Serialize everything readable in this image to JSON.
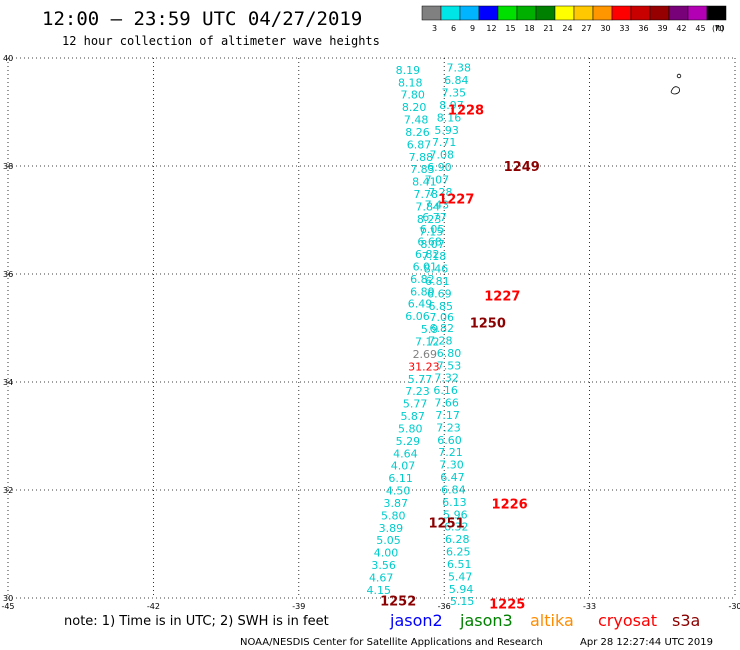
{
  "header": {
    "title": "12:00 – 23:59 UTC 04/27/2019",
    "subtitle": "12 hour collection of altimeter wave heights"
  },
  "color_scale": {
    "unit": "(ft)",
    "labels": [
      "3",
      "6",
      "9",
      "12",
      "15",
      "18",
      "21",
      "24",
      "27",
      "30",
      "33",
      "36",
      "39",
      "42",
      "45",
      "70"
    ],
    "colors": [
      "#808080",
      "#00e5e5",
      "#00b4ff",
      "#0000ff",
      "#00e000",
      "#00b000",
      "#008000",
      "#ffff00",
      "#ffc800",
      "#ff9600",
      "#ff0000",
      "#c80000",
      "#960000",
      "#780078",
      "#b400b4",
      "#000000"
    ]
  },
  "axes": {
    "lat_labels": [
      "40",
      "38",
      "36",
      "34",
      "32",
      "30"
    ],
    "lon_labels": [
      "-45",
      "-42",
      "-39",
      "-36",
      "-33",
      "-30"
    ],
    "lat_range": [
      30,
      40
    ],
    "lon_range": [
      -45,
      -30
    ]
  },
  "chart_data": {
    "type": "scatter",
    "xlim": [
      -45,
      -30
    ],
    "ylim": [
      30,
      40
    ],
    "xlabel": "",
    "ylabel": "",
    "swh_points": [
      {
        "lon": -36.75,
        "lat": 39.78,
        "v": "8.19",
        "c": "#00cccc"
      },
      {
        "lon": -36.7,
        "lat": 39.55,
        "v": "8.18",
        "c": "#00cccc"
      },
      {
        "lon": -36.65,
        "lat": 39.32,
        "v": "7.80",
        "c": "#00cccc"
      },
      {
        "lon": -36.62,
        "lat": 39.09,
        "v": "8.20",
        "c": "#00cccc"
      },
      {
        "lon": -36.58,
        "lat": 38.86,
        "v": "7.48",
        "c": "#00cccc"
      },
      {
        "lon": -36.55,
        "lat": 38.63,
        "v": "8.26",
        "c": "#00cccc"
      },
      {
        "lon": -36.52,
        "lat": 38.4,
        "v": "6.87",
        "c": "#00cccc"
      },
      {
        "lon": -36.48,
        "lat": 38.17,
        "v": "7.88",
        "c": "#00cccc"
      },
      {
        "lon": -36.45,
        "lat": 37.94,
        "v": "7.83",
        "c": "#00cccc"
      },
      {
        "lon": -36.41,
        "lat": 37.71,
        "v": "8.41",
        "c": "#00cccc"
      },
      {
        "lon": -36.38,
        "lat": 37.48,
        "v": "7.78",
        "c": "#00cccc"
      },
      {
        "lon": -36.34,
        "lat": 37.25,
        "v": "7.84",
        "c": "#00cccc"
      },
      {
        "lon": -36.31,
        "lat": 37.02,
        "v": "8.23",
        "c": "#00cccc"
      },
      {
        "lon": -36.27,
        "lat": 36.79,
        "v": "7.15",
        "c": "#00cccc"
      },
      {
        "lon": -36.24,
        "lat": 36.56,
        "v": "8.07",
        "c": "#00cccc"
      },
      {
        "lon": -36.21,
        "lat": 36.33,
        "v": "7.18",
        "c": "#00cccc"
      },
      {
        "lon": -36.17,
        "lat": 36.1,
        "v": "8.46",
        "c": "#00cccc"
      },
      {
        "lon": -36.14,
        "lat": 35.87,
        "v": "6.81",
        "c": "#00cccc"
      },
      {
        "lon": -36.1,
        "lat": 35.64,
        "v": "6.69",
        "c": "#00cccc"
      },
      {
        "lon": -36.07,
        "lat": 35.41,
        "v": "6.85",
        "c": "#00cccc"
      },
      {
        "lon": -36.05,
        "lat": 35.2,
        "v": "7.06",
        "c": "#00cccc"
      },
      {
        "lon": -36.3,
        "lat": 34.98,
        "v": "5.9",
        "c": "#00cccc"
      },
      {
        "lon": -36.35,
        "lat": 34.75,
        "v": "7.12",
        "c": "#00cccc"
      },
      {
        "lon": -36.4,
        "lat": 34.52,
        "v": "2.69",
        "c": "#808080"
      },
      {
        "lon": -36.42,
        "lat": 34.29,
        "v": "31.23",
        "c": "#ff0000"
      },
      {
        "lon": -36.5,
        "lat": 34.06,
        "v": "5.77",
        "c": "#00cccc"
      },
      {
        "lon": -36.55,
        "lat": 33.83,
        "v": "7.23",
        "c": "#00cccc"
      },
      {
        "lon": -36.6,
        "lat": 33.6,
        "v": "5.77",
        "c": "#00cccc"
      },
      {
        "lon": -36.65,
        "lat": 33.37,
        "v": "5.87",
        "c": "#00cccc"
      },
      {
        "lon": -36.7,
        "lat": 33.14,
        "v": "5.80",
        "c": "#00cccc"
      },
      {
        "lon": -36.75,
        "lat": 32.91,
        "v": "5.29",
        "c": "#00cccc"
      },
      {
        "lon": -36.8,
        "lat": 32.68,
        "v": "4.64",
        "c": "#00cccc"
      },
      {
        "lon": -36.85,
        "lat": 32.45,
        "v": "4.07",
        "c": "#00cccc"
      },
      {
        "lon": -36.9,
        "lat": 32.22,
        "v": "6.11",
        "c": "#00cccc"
      },
      {
        "lon": -36.95,
        "lat": 31.99,
        "v": "4.50",
        "c": "#00cccc"
      },
      {
        "lon": -37.0,
        "lat": 31.76,
        "v": "3.87",
        "c": "#00cccc"
      },
      {
        "lon": -37.05,
        "lat": 31.53,
        "v": "5.80",
        "c": "#00cccc"
      },
      {
        "lon": -37.1,
        "lat": 31.3,
        "v": "3.89",
        "c": "#00cccc"
      },
      {
        "lon": -37.15,
        "lat": 31.07,
        "v": "5.05",
        "c": "#00cccc"
      },
      {
        "lon": -37.2,
        "lat": 30.84,
        "v": "4.00",
        "c": "#00cccc"
      },
      {
        "lon": -37.25,
        "lat": 30.61,
        "v": "3.56",
        "c": "#00cccc"
      },
      {
        "lon": -37.3,
        "lat": 30.38,
        "v": "4.67",
        "c": "#00cccc"
      },
      {
        "lon": -37.35,
        "lat": 30.15,
        "v": "4.15",
        "c": "#00cccc"
      },
      {
        "lon": -35.7,
        "lat": 39.82,
        "v": "7.38",
        "c": "#00cccc"
      },
      {
        "lon": -35.75,
        "lat": 39.59,
        "v": "6.84",
        "c": "#00cccc"
      },
      {
        "lon": -35.8,
        "lat": 39.36,
        "v": "7.35",
        "c": "#00cccc"
      },
      {
        "lon": -35.85,
        "lat": 39.13,
        "v": "8.97",
        "c": "#00cccc"
      },
      {
        "lon": -35.9,
        "lat": 38.9,
        "v": "8.16",
        "c": "#00cccc"
      },
      {
        "lon": -35.95,
        "lat": 38.67,
        "v": "5.93",
        "c": "#00cccc"
      },
      {
        "lon": -36.0,
        "lat": 38.44,
        "v": "7.71",
        "c": "#00cccc"
      },
      {
        "lon": -36.05,
        "lat": 38.21,
        "v": "7.08",
        "c": "#00cccc"
      },
      {
        "lon": -36.1,
        "lat": 37.98,
        "v": "6.90",
        "c": "#00cccc"
      },
      {
        "lon": -36.15,
        "lat": 37.75,
        "v": "7.07",
        "c": "#00cccc"
      },
      {
        "lon": -36.08,
        "lat": 37.52,
        "v": "7.28",
        "c": "#00cccc"
      },
      {
        "lon": -36.15,
        "lat": 37.29,
        "v": "7.43",
        "c": "#00cccc"
      },
      {
        "lon": -36.2,
        "lat": 37.06,
        "v": "6.77",
        "c": "#00cccc"
      },
      {
        "lon": -36.25,
        "lat": 36.83,
        "v": "6.05",
        "c": "#00cccc"
      },
      {
        "lon": -36.3,
        "lat": 36.6,
        "v": "6.68",
        "c": "#00cccc"
      },
      {
        "lon": -36.35,
        "lat": 36.37,
        "v": "6.82",
        "c": "#00cccc"
      },
      {
        "lon": -36.4,
        "lat": 36.14,
        "v": "6.01",
        "c": "#00cccc"
      },
      {
        "lon": -36.45,
        "lat": 35.91,
        "v": "6.82",
        "c": "#00cccc"
      },
      {
        "lon": -36.45,
        "lat": 35.68,
        "v": "6.89",
        "c": "#00cccc"
      },
      {
        "lon": -36.5,
        "lat": 35.45,
        "v": "6.49",
        "c": "#00cccc"
      },
      {
        "lon": -36.55,
        "lat": 35.22,
        "v": "6.06",
        "c": "#00cccc"
      },
      {
        "lon": -36.05,
        "lat": 35.0,
        "v": "6.82",
        "c": "#00cccc"
      },
      {
        "lon": -36.08,
        "lat": 34.77,
        "v": "7.28",
        "c": "#00cccc"
      },
      {
        "lon": -35.9,
        "lat": 34.54,
        "v": "6.80",
        "c": "#00cccc"
      },
      {
        "lon": -35.9,
        "lat": 34.31,
        "v": "7.53",
        "c": "#00cccc"
      },
      {
        "lon": -35.95,
        "lat": 34.08,
        "v": "7.32",
        "c": "#00cccc"
      },
      {
        "lon": -35.97,
        "lat": 33.85,
        "v": "6.16",
        "c": "#00cccc"
      },
      {
        "lon": -35.95,
        "lat": 33.62,
        "v": "7.66",
        "c": "#00cccc"
      },
      {
        "lon": -35.93,
        "lat": 33.39,
        "v": "7.17",
        "c": "#00cccc"
      },
      {
        "lon": -35.91,
        "lat": 33.16,
        "v": "7.23",
        "c": "#00cccc"
      },
      {
        "lon": -35.89,
        "lat": 32.93,
        "v": "6.60",
        "c": "#00cccc"
      },
      {
        "lon": -35.87,
        "lat": 32.7,
        "v": "7.21",
        "c": "#00cccc"
      },
      {
        "lon": -35.85,
        "lat": 32.47,
        "v": "7.30",
        "c": "#00cccc"
      },
      {
        "lon": -35.83,
        "lat": 32.24,
        "v": "6.47",
        "c": "#00cccc"
      },
      {
        "lon": -35.81,
        "lat": 32.01,
        "v": "6.84",
        "c": "#00cccc"
      },
      {
        "lon": -35.79,
        "lat": 31.78,
        "v": "6.13",
        "c": "#00cccc"
      },
      {
        "lon": -35.77,
        "lat": 31.55,
        "v": "5.96",
        "c": "#00cccc"
      },
      {
        "lon": -35.75,
        "lat": 31.32,
        "v": "6.32",
        "c": "#00cccc"
      },
      {
        "lon": -35.73,
        "lat": 31.09,
        "v": "6.28",
        "c": "#00cccc"
      },
      {
        "lon": -35.71,
        "lat": 30.86,
        "v": "6.25",
        "c": "#00cccc"
      },
      {
        "lon": -35.69,
        "lat": 30.63,
        "v": "6.51",
        "c": "#00cccc"
      },
      {
        "lon": -35.67,
        "lat": 30.4,
        "v": "5.47",
        "c": "#00cccc"
      },
      {
        "lon": -35.65,
        "lat": 30.17,
        "v": "5.94",
        "c": "#00cccc"
      },
      {
        "lon": -35.63,
        "lat": 29.94,
        "v": "5.15",
        "c": "#00cccc"
      }
    ],
    "pass_times": [
      {
        "lon": -35.55,
        "lat": 39.05,
        "t": "1228",
        "c": "#ff0000"
      },
      {
        "lon": -34.4,
        "lat": 38.0,
        "t": "1249",
        "c": "#8b0000"
      },
      {
        "lon": -35.75,
        "lat": 37.4,
        "t": "1227",
        "c": "#ff0000"
      },
      {
        "lon": -34.8,
        "lat": 35.6,
        "t": "1227",
        "c": "#ff0000"
      },
      {
        "lon": -35.1,
        "lat": 35.1,
        "t": "1250",
        "c": "#8b0000"
      },
      {
        "lon": -34.65,
        "lat": 31.75,
        "t": "1226",
        "c": "#ff0000"
      },
      {
        "lon": -35.95,
        "lat": 31.4,
        "t": "1251",
        "c": "#8b0000"
      },
      {
        "lon": -36.95,
        "lat": 29.95,
        "t": "1252",
        "c": "#8b0000"
      },
      {
        "lon": -34.7,
        "lat": 29.9,
        "t": "1225",
        "c": "#ff0000"
      }
    ]
  },
  "footer": {
    "note": "note: 1) Time is in UTC; 2) SWH is in feet",
    "satellites": [
      {
        "name": "jason2",
        "color": "#0000ff"
      },
      {
        "name": "jason3",
        "color": "#008000"
      },
      {
        "name": "altika",
        "color": "#ff8c00"
      },
      {
        "name": "cryosat",
        "color": "#ff0000"
      },
      {
        "name": "s3a",
        "color": "#8b0000"
      }
    ],
    "credit_left": "NOAA/NESDIS Center for Satellite Applications and Research",
    "credit_right": "Apr 28 12:27:44 UTC 2019"
  }
}
